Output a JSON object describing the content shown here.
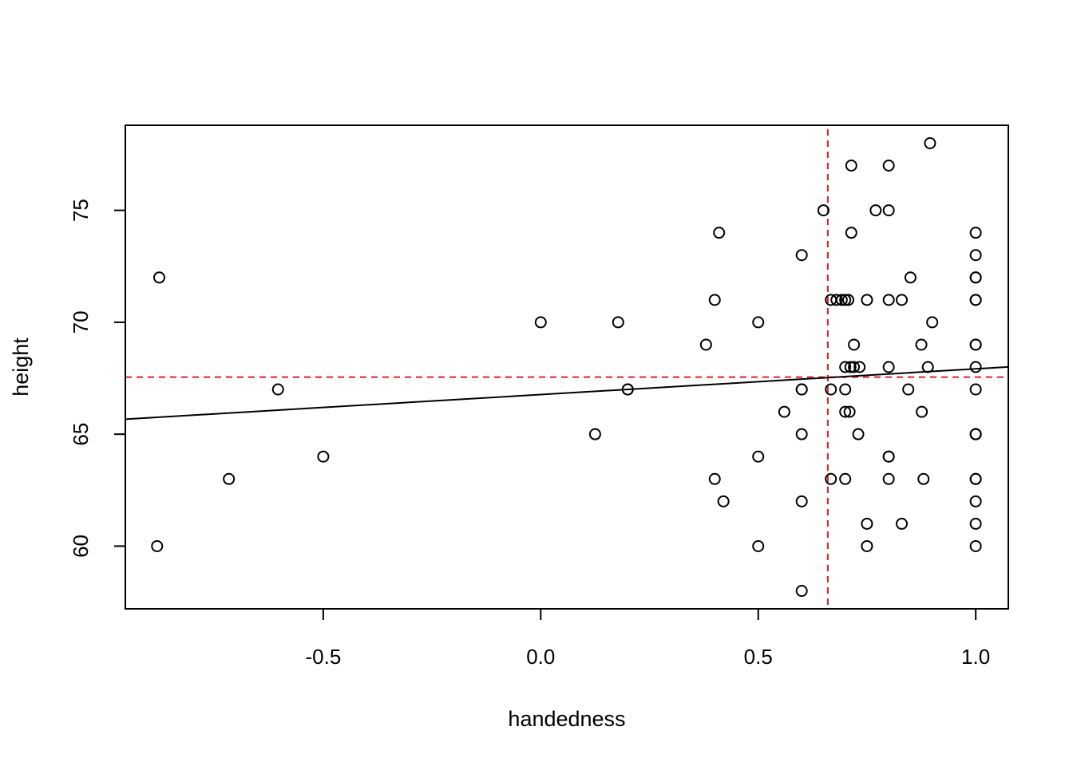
{
  "chart_data": {
    "type": "scatter",
    "title": "",
    "xlabel": "handedness",
    "ylabel": "height",
    "xlim": [
      -0.955,
      1.075
    ],
    "ylim": [
      57.2,
      78.8
    ],
    "x_ticks": [
      -0.5,
      0.0,
      0.5,
      1.0
    ],
    "x_tick_labels": [
      "-0.5",
      "0.0",
      "0.5",
      "1.0"
    ],
    "y_ticks": [
      60,
      65,
      70,
      75
    ],
    "y_tick_labels": [
      "60",
      "65",
      "70",
      "75"
    ],
    "grid": false,
    "legend": "none",
    "points": [
      [
        -0.877,
        72
      ],
      [
        -0.882,
        60
      ],
      [
        -0.717,
        63
      ],
      [
        -0.604,
        67
      ],
      [
        -0.5,
        64
      ],
      [
        0.0,
        70
      ],
      [
        0.178,
        70
      ],
      [
        0.2,
        67
      ],
      [
        0.2,
        67
      ],
      [
        0.125,
        65
      ],
      [
        0.38,
        69
      ],
      [
        0.4,
        71
      ],
      [
        0.41,
        74
      ],
      [
        0.4,
        63
      ],
      [
        0.42,
        62
      ],
      [
        0.5,
        70
      ],
      [
        0.5,
        64
      ],
      [
        0.5,
        60
      ],
      [
        0.56,
        66
      ],
      [
        0.6,
        73
      ],
      [
        0.6,
        67
      ],
      [
        0.6,
        67
      ],
      [
        0.6,
        65
      ],
      [
        0.6,
        62
      ],
      [
        0.6,
        58
      ],
      [
        0.65,
        75
      ],
      [
        0.667,
        71
      ],
      [
        0.667,
        67
      ],
      [
        0.667,
        63
      ],
      [
        0.68,
        71
      ],
      [
        0.692,
        71
      ],
      [
        0.7,
        71
      ],
      [
        0.7,
        68
      ],
      [
        0.7,
        67
      ],
      [
        0.7,
        66
      ],
      [
        0.7,
        63
      ],
      [
        0.707,
        71
      ],
      [
        0.71,
        66
      ],
      [
        0.712,
        68
      ],
      [
        0.714,
        77
      ],
      [
        0.714,
        74
      ],
      [
        0.72,
        69
      ],
      [
        0.72,
        68
      ],
      [
        0.73,
        65
      ],
      [
        0.733,
        68
      ],
      [
        0.75,
        71
      ],
      [
        0.75,
        61
      ],
      [
        0.75,
        60
      ],
      [
        0.77,
        75
      ],
      [
        0.8,
        77
      ],
      [
        0.8,
        75
      ],
      [
        0.8,
        71
      ],
      [
        0.8,
        68
      ],
      [
        0.8,
        64
      ],
      [
        0.8,
        64
      ],
      [
        0.8,
        63
      ],
      [
        0.83,
        71
      ],
      [
        0.83,
        61
      ],
      [
        0.845,
        67
      ],
      [
        0.85,
        72
      ],
      [
        0.875,
        69
      ],
      [
        0.876,
        66
      ],
      [
        0.88,
        63
      ],
      [
        0.89,
        68
      ],
      [
        0.895,
        78
      ],
      [
        0.9,
        70
      ],
      [
        1.0,
        74
      ],
      [
        1.0,
        73
      ],
      [
        1.0,
        72
      ],
      [
        1.0,
        72
      ],
      [
        1.0,
        71
      ],
      [
        1.0,
        71
      ],
      [
        1.0,
        69
      ],
      [
        1.0,
        69
      ],
      [
        1.0,
        68
      ],
      [
        1.0,
        67
      ],
      [
        1.0,
        65
      ],
      [
        1.0,
        65
      ],
      [
        1.0,
        65
      ],
      [
        1.0,
        63
      ],
      [
        1.0,
        63
      ],
      [
        1.0,
        62
      ],
      [
        1.0,
        61
      ],
      [
        1.0,
        60
      ]
    ],
    "regression_line": {
      "intercept": 66.77,
      "slope": 1.15,
      "color": "#000000"
    },
    "mean_x_line": {
      "value": 0.66,
      "color": "#df2020",
      "style": "dashed"
    },
    "mean_y_line": {
      "value": 67.55,
      "color": "#df2020",
      "style": "dashed"
    },
    "point_color": "#000000"
  }
}
